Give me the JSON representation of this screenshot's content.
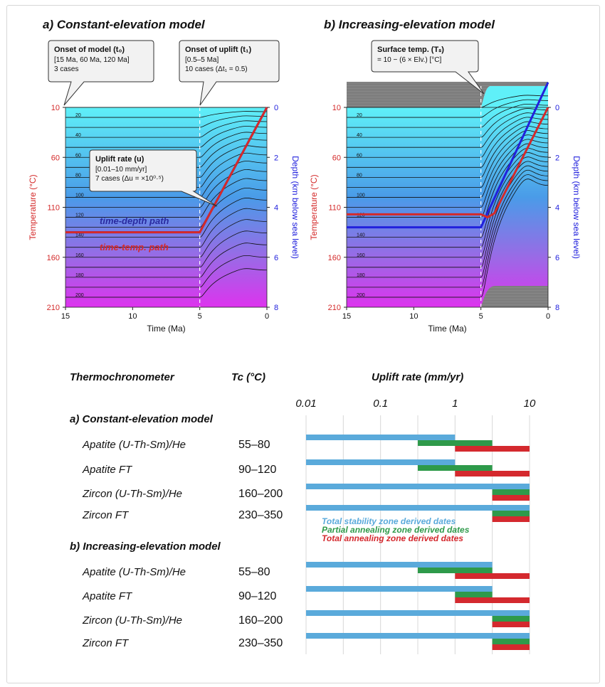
{
  "colors": {
    "total_stability": "#5aaadb",
    "partial_annealing": "#2e9a4a",
    "total_annealing": "#d4292e",
    "temp_axis": "#d42a2a",
    "depth_axis": "#2121dd",
    "grid_top": "#5ff0f8",
    "grid_bottom": "#dd33ee",
    "gray": "#808080"
  },
  "panels": [
    {
      "title": "a) Constant-elevation model",
      "xlabel": "Time (Ma)",
      "xticks": [
        "15",
        "10",
        "5",
        "0"
      ],
      "ylabel_left": "Temperature (°C)",
      "ylabel_right": "Depth (km below sea level)",
      "temp_ticks": [
        "10",
        "60",
        "110",
        "160",
        "210"
      ],
      "depth_ticks": [
        "0",
        "2",
        "4",
        "6",
        "8"
      ],
      "iso_labels": [
        "20",
        "40",
        "60",
        "80",
        "100",
        "120",
        "140",
        "160",
        "180",
        "200"
      ],
      "path_label_depth": "time-depth path",
      "path_label_temp": "time-temp. path",
      "callouts": [
        {
          "title": "Onset of model (t₀)",
          "lines": [
            "[15 Ma, 60 Ma, 120 Ma]",
            "3 cases"
          ]
        },
        {
          "title": "Onset of uplift (t₁)",
          "lines": [
            "[0.5–5 Ma]",
            "10 cases (Δt₁ = 0.5)"
          ]
        },
        {
          "title": "Uplift rate (u)",
          "lines": [
            "[0.01–10 mm/yr]",
            "7 cases (Δu = ×10⁰·⁵)"
          ]
        }
      ]
    },
    {
      "title": "b) Increasing-elevation model",
      "xlabel": "Time (Ma)",
      "xticks": [
        "15",
        "10",
        "5",
        "0"
      ],
      "ylabel_left": "Temperature (°C)",
      "ylabel_right": "Depth (km below sea level)",
      "temp_ticks": [
        "10",
        "60",
        "110",
        "160",
        "210"
      ],
      "depth_ticks": [
        "0",
        "2",
        "4",
        "6",
        "8"
      ],
      "iso_labels": [
        "20",
        "40",
        "60",
        "80",
        "100",
        "120",
        "140",
        "160",
        "180",
        "200"
      ],
      "callouts": [
        {
          "title": "Surface temp. (Tₛ)",
          "lines": [
            "= 10 − (6 × Elv.) [°C]"
          ]
        }
      ]
    }
  ],
  "chart_data": [
    {
      "type": "line",
      "title": "a) Constant-elevation model",
      "xlabel": "Time (Ma)",
      "xlim": [
        15,
        0
      ],
      "ylabel": "Temperature (°C)",
      "ylim": [
        10,
        210
      ],
      "y2label": "Depth (km below sea level)",
      "y2lim": [
        0,
        8
      ],
      "series": [
        {
          "name": "time-temp. path",
          "x": [
            15,
            5,
            0
          ],
          "y": [
            135,
            135,
            10
          ]
        },
        {
          "name": "time-depth path",
          "x": [
            15,
            5,
            0
          ],
          "y2": [
            5,
            5,
            0
          ]
        }
      ]
    },
    {
      "type": "line",
      "title": "b) Increasing-elevation model",
      "xlabel": "Time (Ma)",
      "xlim": [
        15,
        0
      ],
      "ylabel": "Temperature (°C)",
      "ylim": [
        10,
        210
      ],
      "y2label": "Depth (km below sea level)",
      "y2lim": [
        0,
        8
      ],
      "series": [
        {
          "name": "time-temp. path",
          "x": [
            15,
            5,
            4.5,
            4,
            0
          ],
          "y": [
            117,
            117,
            120,
            116,
            10
          ]
        },
        {
          "name": "time-depth path",
          "x": [
            15,
            5,
            0
          ],
          "y2": [
            4.8,
            4.8,
            -1
          ]
        }
      ]
    },
    {
      "type": "bar",
      "orientation": "horizontal",
      "xscale": "log",
      "header_thermo": "Thermochronometer",
      "header_tc": "Tc (°C)",
      "title": "Uplift rate (mm/yr)",
      "xticks": [
        "0.01",
        "0.1",
        "1",
        "10"
      ],
      "xlim": [
        0.01,
        10
      ],
      "legend": [
        "Total stability zone derived dates",
        "Partial annealing zone derived dates",
        "Total annealing zone derived dates"
      ],
      "sections": [
        {
          "name": "a) Constant-elevation model",
          "rows": [
            {
              "label": "Apatite (U-Th-Sm)/He",
              "tc": "55–80",
              "tsz": [
                0.01,
                1
              ],
              "paz": [
                0.316,
                3.16
              ],
              "taz": [
                1,
                10
              ]
            },
            {
              "label": "Apatite FT",
              "tc": "90–120",
              "tsz": [
                0.01,
                1
              ],
              "paz": [
                0.316,
                3.16
              ],
              "taz": [
                1,
                10
              ]
            },
            {
              "label": "Zircon (U-Th-Sm)/He",
              "tc": "160–200",
              "tsz": [
                0.01,
                10
              ],
              "paz": [
                3.16,
                10
              ],
              "taz": [
                3.16,
                10
              ]
            },
            {
              "label": "Zircon FT",
              "tc": "230–350",
              "tsz": [
                0.01,
                10
              ],
              "paz": [
                3.16,
                10
              ],
              "taz": [
                3.16,
                10
              ]
            }
          ]
        },
        {
          "name": "b) Increasing-elevation model",
          "rows": [
            {
              "label": "Apatite (U-Th-Sm)/He",
              "tc": "55–80",
              "tsz": [
                0.01,
                3.16
              ],
              "paz": [
                0.316,
                3.16
              ],
              "taz": [
                1,
                10
              ]
            },
            {
              "label": "Apatite FT",
              "tc": "90–120",
              "tsz": [
                0.01,
                3.16
              ],
              "paz": [
                1,
                3.16
              ],
              "taz": [
                1,
                10
              ]
            },
            {
              "label": "Zircon (U-Th-Sm)/He",
              "tc": "160–200",
              "tsz": [
                0.01,
                10
              ],
              "paz": [
                3.16,
                10
              ],
              "taz": [
                3.16,
                10
              ]
            },
            {
              "label": "Zircon FT",
              "tc": "230–350",
              "tsz": [
                0.01,
                10
              ],
              "paz": [
                3.16,
                10
              ],
              "taz": [
                3.16,
                10
              ]
            }
          ]
        }
      ]
    }
  ]
}
